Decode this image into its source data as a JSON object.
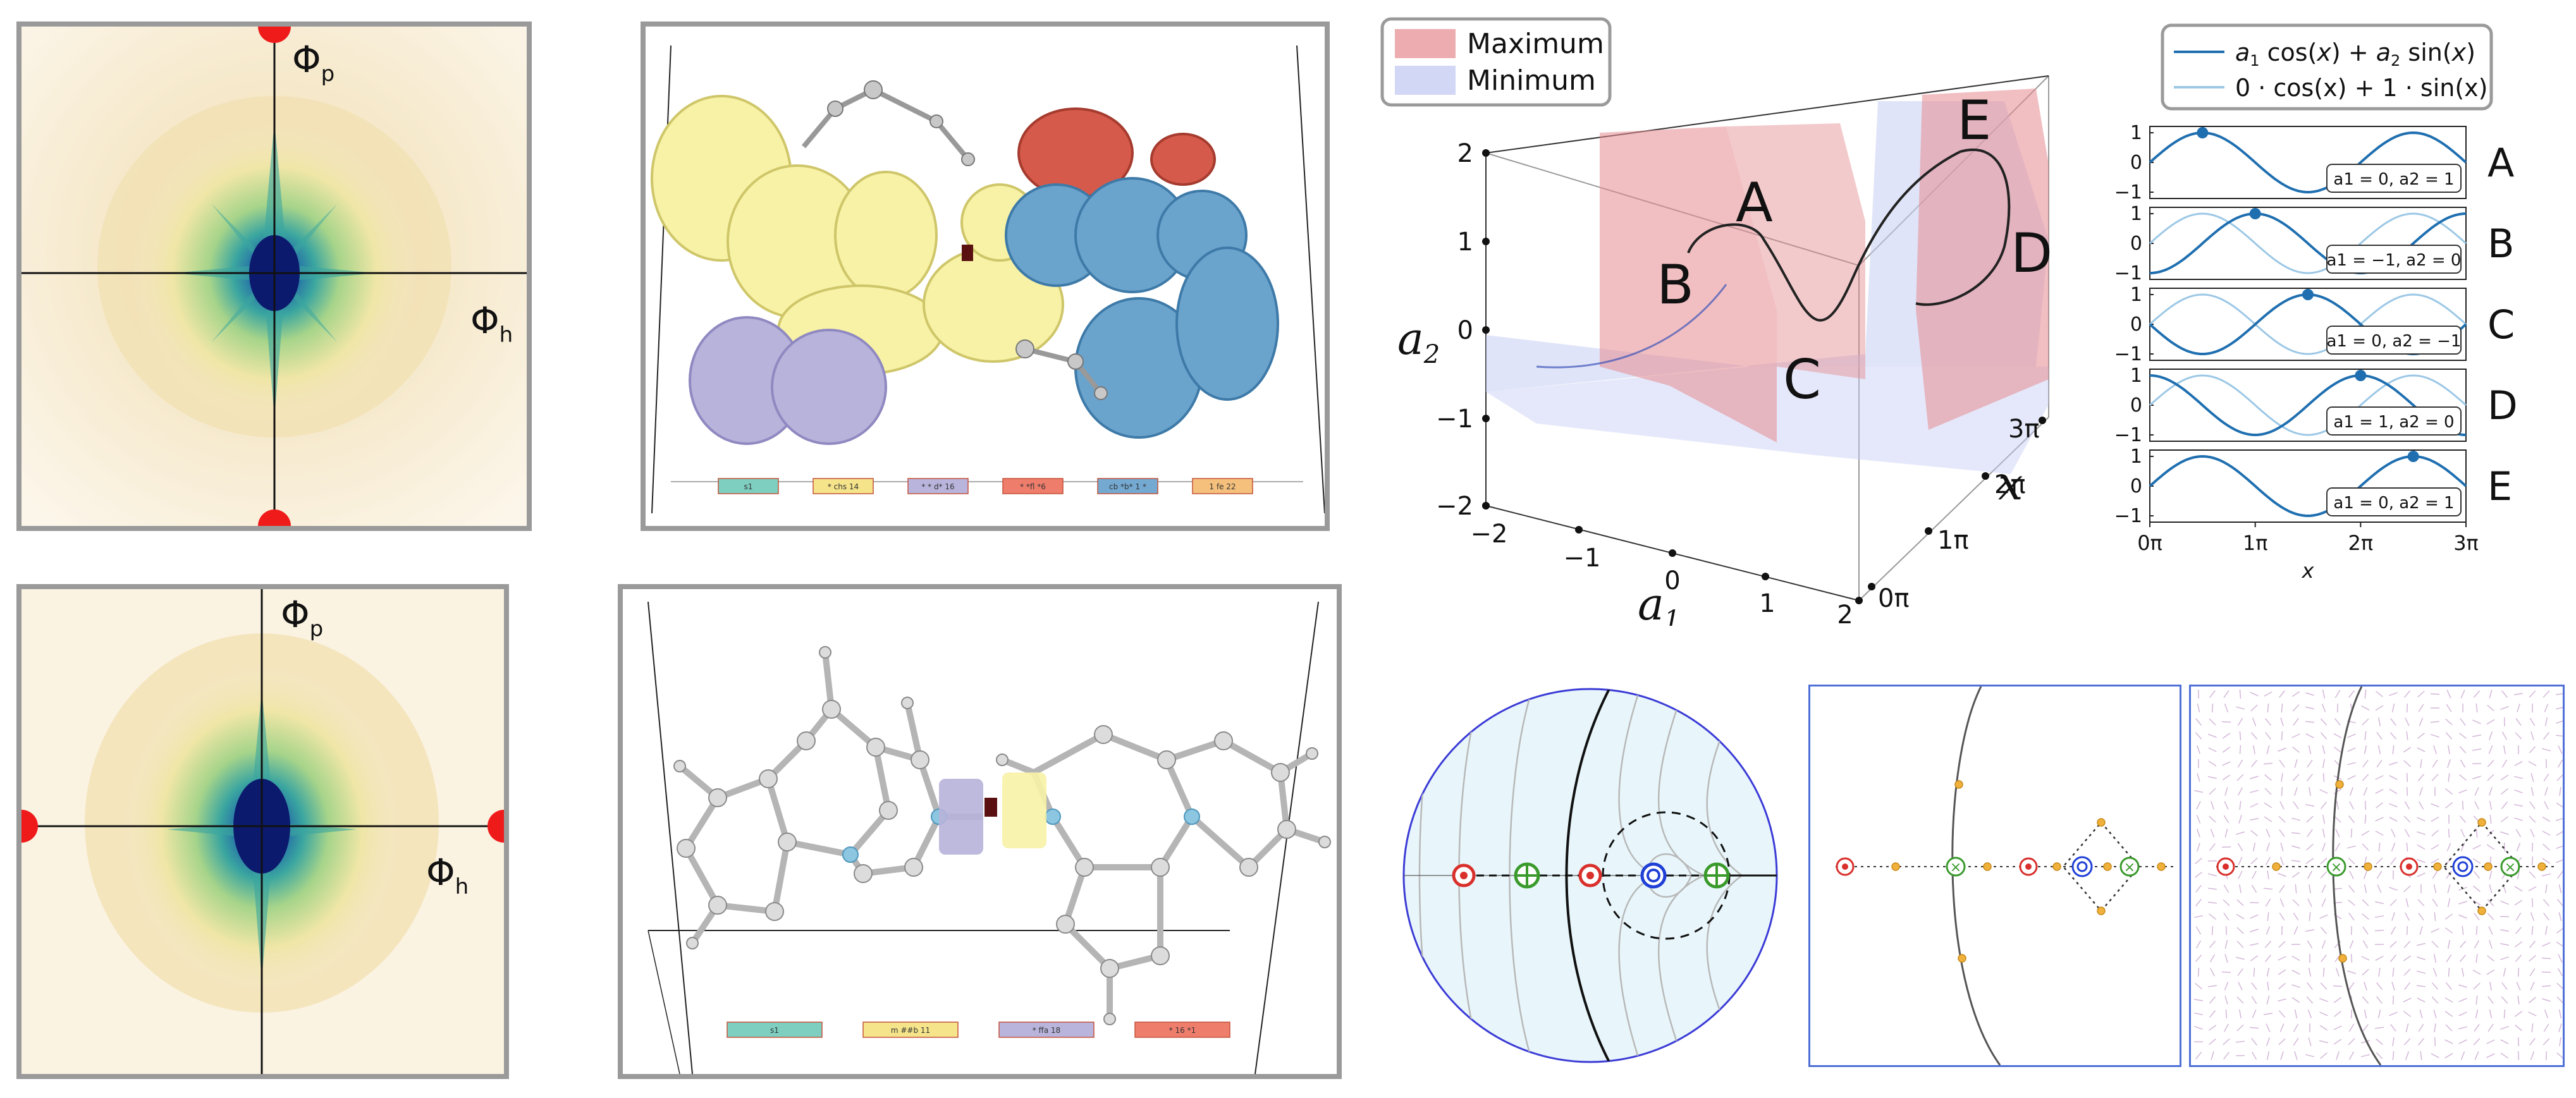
{
  "heatmap_top": {
    "axis_vertical": "Φ",
    "axis_vertical_sub": "p",
    "axis_horizontal": "Φ",
    "axis_horizontal_sub": "h"
  },
  "heatmap_bottom": {
    "axis_vertical": "Φ",
    "axis_vertical_sub": "p",
    "axis_horizontal": "Φ",
    "axis_horizontal_sub": "h"
  },
  "molecule_top": {
    "legend": [
      "s1",
      "* chs 14",
      "* * d* 16",
      "* *fl *6",
      "cb *b* 1 *",
      "1 fe 22"
    ],
    "legend_colors": [
      "#7ecfc0",
      "#f5e48a",
      "#b9b4dc",
      "#ef7d6c",
      "#74a9d2",
      "#f4c07c"
    ]
  },
  "molecule_bottom": {
    "legend": [
      "s1",
      "m ##b 11",
      "* ffa 18",
      "* 16 *1"
    ],
    "legend_colors": [
      "#7ecfc0",
      "#f5e48a",
      "#b9b4dc",
      "#ef7d6c"
    ]
  },
  "plot3d": {
    "legend": [
      "Maximum",
      "Minimum"
    ],
    "legend_colors": [
      "#e58a8f",
      "#c6cdf3"
    ],
    "axis_a2": "a",
    "axis_a2_sub": "2",
    "axis_a1": "a",
    "axis_a1_sub": "1",
    "axis_x": "x",
    "a2_ticks": [
      "2",
      "1",
      "0",
      "−1",
      "−2"
    ],
    "a1_ticks": [
      "−2",
      "−1",
      "0",
      "1",
      "2"
    ],
    "x_ticks": [
      "0π",
      "1π",
      "2π",
      "3π"
    ],
    "points": [
      "A",
      "B",
      "C",
      "D",
      "E"
    ]
  },
  "sinplots": {
    "legend_main_parts": [
      "a",
      "1",
      " cos(",
      "x",
      ") + ",
      "a",
      "2",
      " sin(",
      "x",
      ")"
    ],
    "legend_ref": "0 · cos(x) + 1 · sin(x)",
    "y_ticks": [
      "1",
      "0",
      "−1"
    ],
    "x_ticks": [
      "0π",
      "1π",
      "2π",
      "3π"
    ],
    "xlabel": "x",
    "colors": {
      "main": "#1f6fb0",
      "ref": "#9cc8e6"
    },
    "panels": [
      {
        "id": "A",
        "label": "a1 = 0, a2 = 1",
        "a1": 0,
        "a2": 1,
        "dot_x": 0.5
      },
      {
        "id": "B",
        "label": "a1 = −1, a2 = 0",
        "a1": -1,
        "a2": 0,
        "dot_x": 1.0
      },
      {
        "id": "C",
        "label": "a1 = 0, a2 = −1",
        "a1": 0,
        "a2": -1,
        "dot_x": 1.5
      },
      {
        "id": "D",
        "label": "a1 = 1, a2 = 0",
        "a1": 1,
        "a2": 0,
        "dot_x": 2.0
      },
      {
        "id": "E",
        "label": "a1 = 0, a2 = 1",
        "a1": 0,
        "a2": 1,
        "dot_x": 2.5
      }
    ]
  },
  "phase": {
    "colors": {
      "source": "#d9302c",
      "saddle": "#3a9a2c",
      "sink": "#1f3fd6",
      "fixed": "#f0b13c"
    }
  }
}
